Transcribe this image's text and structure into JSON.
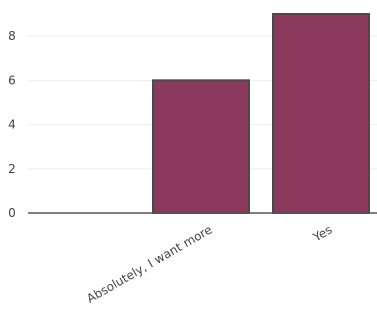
{
  "chart_data": {
    "type": "bar",
    "categories": [
      "Absolutely, I want more",
      "Yes"
    ],
    "values": [
      6,
      9
    ],
    "ylim": [
      0,
      9
    ],
    "yticks": [
      0,
      2,
      4,
      6,
      8
    ],
    "grid": true,
    "colors": {
      "bar": "#8b3a5e",
      "bar_edge": "#4a4a4a",
      "grid": "#eeeeee",
      "axis": "#555555"
    }
  }
}
